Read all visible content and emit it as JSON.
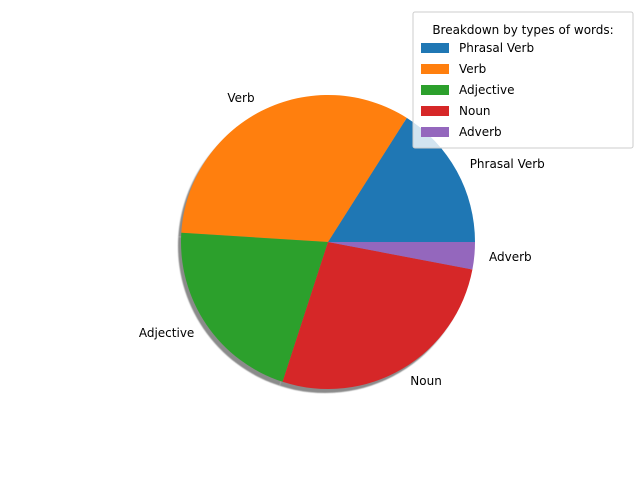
{
  "chart_data": {
    "type": "pie",
    "title": "",
    "categories": [
      "Phrasal Verb",
      "Verb",
      "Adjective",
      "Noun",
      "Adverb"
    ],
    "values": [
      16,
      33,
      21,
      27,
      3
    ],
    "colors": [
      "#1f77b4",
      "#ff7f0e",
      "#2ca02c",
      "#d62728",
      "#9467bd"
    ],
    "start_angle_deg": 0,
    "direction": "counterclockwise",
    "shadow": true,
    "legend": {
      "title": "Breakdown by types of words:",
      "placement": "top-right",
      "entries": [
        "Phrasal Verb",
        "Verb",
        "Adjective",
        "Noun",
        "Adverb"
      ]
    }
  }
}
